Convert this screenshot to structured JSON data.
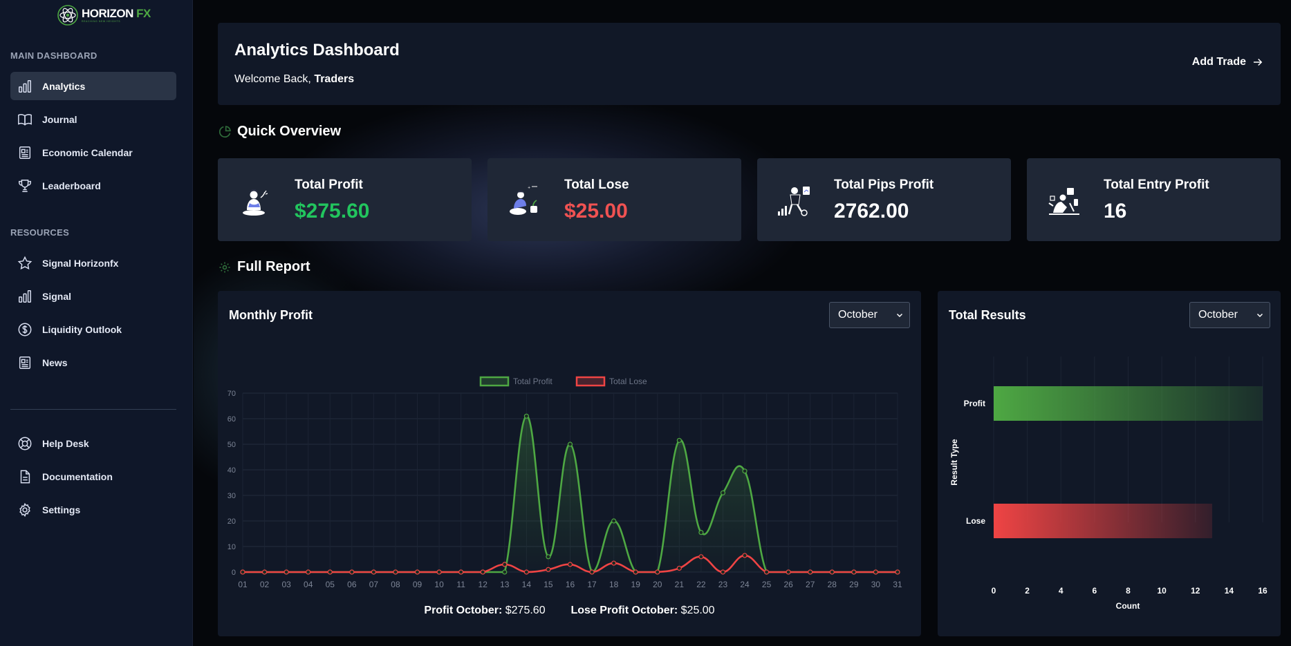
{
  "brand": {
    "name_main": "HORIZON",
    "name_accent": "FX",
    "tagline": "REACHING NEW HEIGHTS"
  },
  "sidebar": {
    "main_title": "MAIN DASHBOARD",
    "main_items": [
      {
        "label": "Analytics",
        "icon": "bar-chart-icon",
        "active": true
      },
      {
        "label": "Journal",
        "icon": "book-icon"
      },
      {
        "label": "Economic Calendar",
        "icon": "newspaper-icon"
      },
      {
        "label": "Leaderboard",
        "icon": "trophy-icon"
      }
    ],
    "resources_title": "RESOURCES",
    "resource_items": [
      {
        "label": "Signal Horizonfx",
        "icon": "star-icon"
      },
      {
        "label": "Signal",
        "icon": "bar-chart-icon"
      },
      {
        "label": "Liquidity Outlook",
        "icon": "dollar-circle-icon"
      },
      {
        "label": "News",
        "icon": "newspaper-icon"
      }
    ],
    "footer_items": [
      {
        "label": "Help Desk",
        "icon": "lifebuoy-icon"
      },
      {
        "label": "Documentation",
        "icon": "document-icon"
      },
      {
        "label": "Settings",
        "icon": "gear-icon"
      }
    ]
  },
  "header": {
    "title": "Analytics Dashboard",
    "welcome_prefix": "Welcome Back,",
    "welcome_name": "Traders",
    "add_trade": "Add Trade"
  },
  "overview": {
    "title": "Quick Overview",
    "cards": [
      {
        "label": "Total Profit",
        "value": "$275.60",
        "color": "#22c55e"
      },
      {
        "label": "Total Lose",
        "value": "$25.00",
        "color": "#f05252"
      },
      {
        "label": "Total Pips Profit",
        "value": "2762.00",
        "color": "#ffffff"
      },
      {
        "label": "Total Entry Profit",
        "value": "16",
        "color": "#ffffff"
      }
    ]
  },
  "report": {
    "title": "Full Report",
    "monthly": {
      "title": "Monthly Profit",
      "selected_month": "October",
      "profit_label": "Profit October:",
      "profit_value": "$275.60",
      "lose_label": "Lose Profit October:",
      "lose_value": "$25.00"
    },
    "results": {
      "title": "Total Results",
      "selected_month": "October"
    }
  },
  "chart_data": [
    {
      "type": "line",
      "title": "Monthly Profit",
      "x": [
        "01",
        "02",
        "03",
        "04",
        "05",
        "06",
        "07",
        "08",
        "09",
        "10",
        "11",
        "12",
        "13",
        "14",
        "15",
        "16",
        "17",
        "18",
        "19",
        "20",
        "21",
        "22",
        "23",
        "24",
        "25",
        "26",
        "27",
        "28",
        "29",
        "30",
        "31"
      ],
      "ylim": [
        0,
        70
      ],
      "yticks": [
        0,
        10,
        20,
        30,
        40,
        50,
        60,
        70
      ],
      "legend": "top-center",
      "grid": true,
      "series": [
        {
          "name": "Total Profit",
          "color": "#4ea843",
          "values": [
            0,
            0,
            0,
            0,
            0,
            0,
            0,
            0,
            0,
            0,
            0,
            0,
            0,
            61,
            6,
            50,
            0,
            20,
            0,
            0,
            51.5,
            15.5,
            31,
            39.5,
            0,
            0,
            0,
            0,
            0,
            0,
            0
          ]
        },
        {
          "name": "Total Lose",
          "color": "#ef4444",
          "values": [
            0,
            0,
            0,
            0,
            0,
            0,
            0,
            0,
            0,
            0,
            0,
            0,
            3,
            0,
            1,
            3,
            0,
            3.5,
            0,
            0,
            1.5,
            6,
            0,
            6.5,
            0,
            0,
            0,
            0,
            0,
            0,
            0
          ]
        }
      ]
    },
    {
      "type": "bar",
      "orientation": "horizontal",
      "title": "Total Results",
      "categories": [
        "Profit",
        "Lose"
      ],
      "values": [
        16,
        13
      ],
      "colors": [
        "#4ea843",
        "#ef4444"
      ],
      "xlabel": "Count",
      "ylabel": "Result Type",
      "xlim": [
        0,
        16
      ],
      "xticks": [
        0,
        2,
        4,
        6,
        8,
        10,
        12,
        14,
        16
      ]
    }
  ]
}
